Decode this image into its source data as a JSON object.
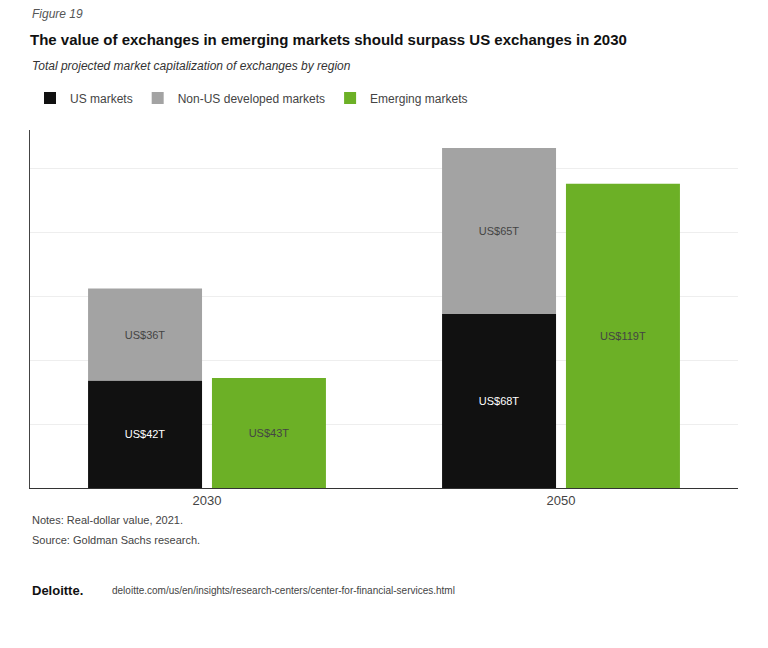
{
  "chart_data": {
    "type": "bar",
    "title": "The value of exchanges in emerging markets should surpass US exchanges in 2030",
    "subtitle": "Total projected market capitalization of exchanges by region",
    "annotations": [
      "Figure 19",
      "Notes: Real-dollar value, 2021.",
      "Source: Goldman Sachs research.",
      "Deloitte.",
      "deloitte.com/us/en/insights/research-centers/center-for-financial-services.html"
    ],
    "categories": [
      "2030",
      "2050"
    ],
    "series": [
      {
        "name": "US markets",
        "color": "#111111",
        "values": [
          42,
          68
        ],
        "value_labels": [
          "US$42T",
          "US$68T"
        ],
        "stacked": true
      },
      {
        "name": "Non-US developed markets",
        "color": "#a3a3a3",
        "values": [
          36,
          65
        ],
        "value_labels": [
          "US$36T",
          "US$65T"
        ],
        "stacked": true
      },
      {
        "name": "Emerging markets",
        "color": "#6cb026",
        "values": [
          43,
          119
        ],
        "value_labels": [
          "US$43T",
          "US$119T"
        ],
        "stacked": false
      }
    ],
    "ylim": [
      0,
      140
    ],
    "yticks": [
      0,
      25,
      50,
      75,
      100,
      125
    ],
    "grid": true,
    "legend": "top left",
    "data_labels": true,
    "tick_labels": "x"
  }
}
